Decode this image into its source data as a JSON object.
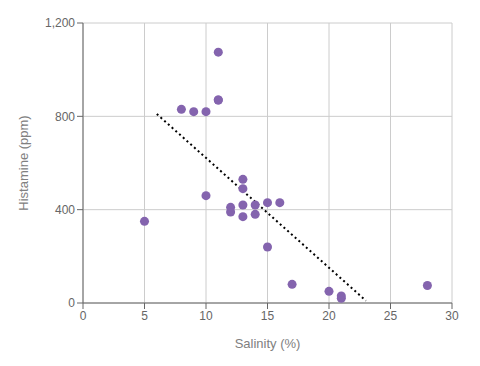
{
  "chart_data": {
    "type": "scatter",
    "xlabel": "Salinity (%)",
    "ylabel": "Histamine (ppm)",
    "x": [
      5,
      8,
      9,
      10,
      10,
      11,
      11,
      11,
      12,
      12,
      13,
      13,
      13,
      13,
      14,
      14,
      15,
      15,
      16,
      17,
      20,
      21,
      21,
      28
    ],
    "values": [
      350,
      830,
      820,
      820,
      460,
      1075,
      870,
      870,
      390,
      410,
      530,
      490,
      420,
      370,
      420,
      380,
      240,
      430,
      430,
      80,
      50,
      20,
      30,
      75
    ],
    "color": "#8464AE",
    "trendline": {
      "x": [
        6,
        23
      ],
      "values": [
        810,
        10
      ],
      "color": "black",
      "line_style": "dotted"
    },
    "xlim": [
      0,
      30
    ],
    "ylim": [
      0,
      1200
    ],
    "xticks": [
      0,
      5,
      10,
      15,
      20,
      25,
      30
    ],
    "yticks": [
      0,
      400,
      800,
      {
        "value": 1200,
        "label": "1,200"
      }
    ],
    "grid": true
  }
}
